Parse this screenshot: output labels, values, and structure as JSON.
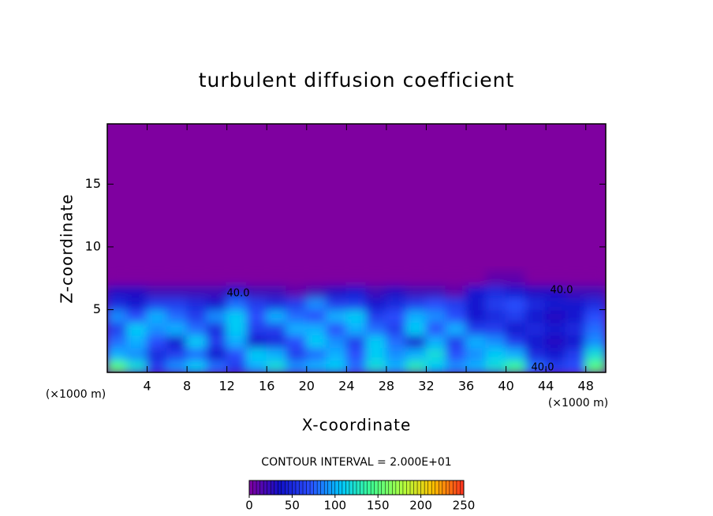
{
  "chart_data": {
    "type": "heatmap",
    "title": "turbulent diffusion coefficient",
    "x_label": "X-coordinate",
    "y_label": "Z-coordinate",
    "x_unit": "(×1000 m)",
    "y_unit": "(×1000 m)",
    "xlim": [
      0,
      50
    ],
    "ylim": [
      0,
      19.8
    ],
    "xticks": [
      4,
      8,
      12,
      16,
      20,
      24,
      28,
      32,
      36,
      40,
      44,
      48
    ],
    "yticks": [
      5,
      10,
      15
    ],
    "x": [
      1,
      3,
      5,
      7,
      9,
      11,
      13,
      15,
      17,
      19,
      21,
      23,
      25,
      27,
      29,
      31,
      33,
      35,
      37,
      39,
      41,
      43,
      45,
      47,
      49
    ],
    "z": [
      0.5,
      1.5,
      2.5,
      3.5,
      4.5,
      5.5,
      6.5,
      7.5
    ],
    "values": [
      [
        150,
        120,
        60,
        90,
        110,
        80,
        60,
        100,
        120,
        90,
        100,
        110,
        80,
        120,
        100,
        130,
        110,
        90,
        100,
        120,
        140,
        80,
        60,
        70,
        150
      ],
      [
        100,
        90,
        50,
        60,
        80,
        40,
        70,
        110,
        100,
        60,
        80,
        100,
        70,
        110,
        90,
        100,
        120,
        70,
        90,
        110,
        100,
        50,
        40,
        60,
        120
      ],
      [
        80,
        100,
        70,
        40,
        110,
        60,
        100,
        40,
        50,
        70,
        110,
        90,
        60,
        110,
        80,
        40,
        100,
        60,
        100,
        90,
        60,
        40,
        30,
        40,
        90
      ],
      [
        60,
        110,
        90,
        100,
        80,
        50,
        110,
        60,
        60,
        100,
        100,
        70,
        100,
        80,
        60,
        110,
        70,
        100,
        60,
        60,
        40,
        50,
        40,
        50,
        80
      ],
      [
        90,
        70,
        100,
        80,
        60,
        90,
        110,
        70,
        100,
        80,
        70,
        100,
        110,
        60,
        70,
        100,
        90,
        70,
        40,
        50,
        60,
        40,
        30,
        40,
        70
      ],
      [
        50,
        40,
        60,
        60,
        50,
        40,
        80,
        60,
        50,
        60,
        90,
        60,
        60,
        40,
        50,
        60,
        70,
        60,
        40,
        60,
        70,
        50,
        40,
        40,
        50
      ],
      [
        30,
        30,
        20,
        20,
        20,
        20,
        40,
        20,
        20,
        10,
        20,
        30,
        40,
        20,
        30,
        20,
        20,
        10,
        40,
        50,
        40,
        30,
        30,
        20,
        20
      ],
      [
        0,
        0,
        0,
        0,
        0,
        0,
        0,
        0,
        0,
        0,
        0,
        0,
        0,
        0,
        0,
        0,
        0,
        0,
        0,
        10,
        10,
        0,
        0,
        0,
        0
      ]
    ],
    "contour_labels": [
      "40.0",
      "40.0",
      "40.0"
    ],
    "contour_interval_label": "CONTOUR INTERVAL = 2.000E+01",
    "clim": [
      0,
      250
    ],
    "cticks": [
      0,
      50,
      100,
      150,
      200,
      250
    ],
    "colors": [
      "#7f00a0",
      "#1010c8",
      "#2a50ff",
      "#00c8ff",
      "#40ff90",
      "#b0ff40",
      "#ffc000",
      "#ff3020"
    ]
  }
}
